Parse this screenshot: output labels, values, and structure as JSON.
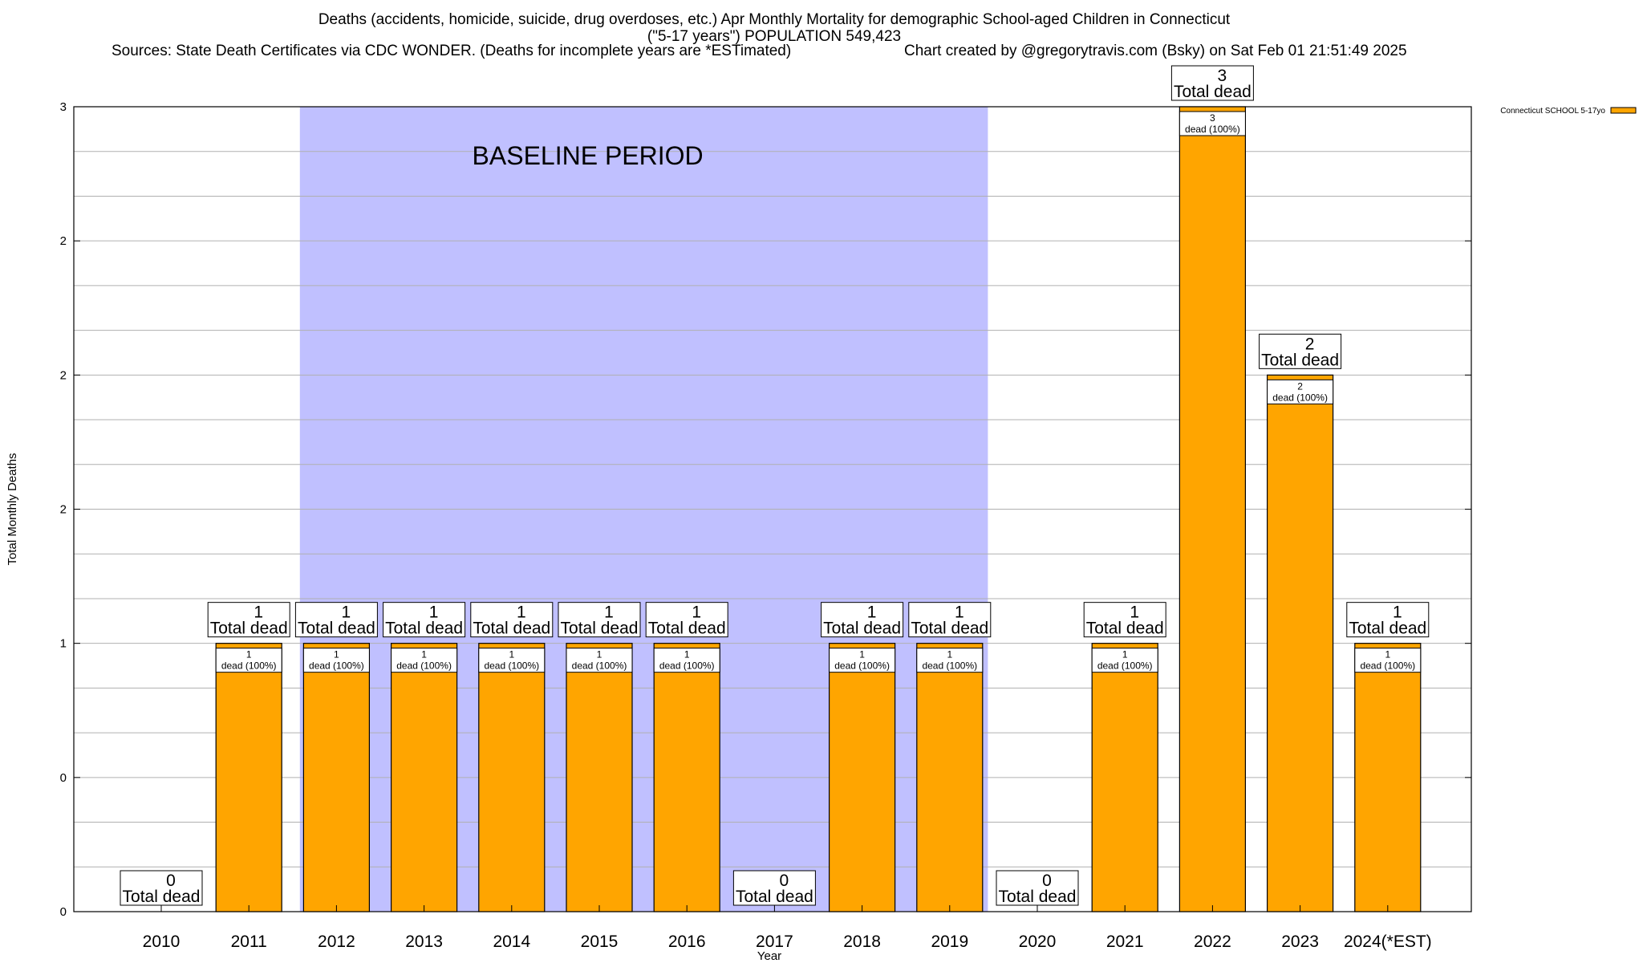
{
  "header": {
    "title_line1": "Deaths (accidents, homicide, suicide, drug overdoses, etc.) Apr Monthly Mortality for demographic School-aged Children in Connecticut",
    "title_line2": "(\"5-17 years\") POPULATION 549,423",
    "sources": "Sources: State Death Certificates via CDC WONDER. (Deaths for incomplete years are *ESTimated)",
    "credit": "Chart created by @gregorytravis.com (Bsky) on Sat Feb 01 21:51:49 2025"
  },
  "chart_data": {
    "type": "bar",
    "title": "Deaths (accidents, homicide, suicide, drug overdoses, etc.) Apr Monthly Mortality for demographic School-aged Children in Connecticut",
    "xlabel": "Year",
    "ylabel": "Total Monthly Deaths",
    "ylim": [
      0,
      3
    ],
    "y_ticks": [
      {
        "value": 0,
        "label": "0"
      },
      {
        "value": 0.5,
        "label": "0"
      },
      {
        "value": 1,
        "label": "1"
      },
      {
        "value": 1.5,
        "label": "2"
      },
      {
        "value": 2,
        "label": "2"
      },
      {
        "value": 2.5,
        "label": "2"
      },
      {
        "value": 3,
        "label": "3"
      }
    ],
    "grid": true,
    "legend": {
      "position": "top-right",
      "entries": [
        "Connecticut SCHOOL 5-17yo"
      ]
    },
    "categories": [
      "2010",
      "2011",
      "2012",
      "2013",
      "2014",
      "2015",
      "2016",
      "2017",
      "2018",
      "2019",
      "2020",
      "2021",
      "2022",
      "2023",
      "2024(*EST)"
    ],
    "series": [
      {
        "name": "Connecticut SCHOOL 5-17yo",
        "values": [
          0,
          1,
          1,
          1,
          1,
          1,
          1,
          0,
          1,
          1,
          0,
          1,
          3,
          2,
          1
        ]
      }
    ],
    "total_labels": [
      "0\nTotal dead",
      "1\nTotal dead",
      "1\nTotal dead",
      "1\nTotal dead",
      "1\nTotal dead",
      "1\nTotal dead",
      "1\nTotal dead",
      "0\nTotal dead",
      "1\nTotal dead",
      "1\nTotal dead",
      "0\nTotal dead",
      "1\nTotal dead",
      "3\nTotal dead",
      "2\nTotal dead",
      "1\nTotal dead"
    ],
    "inner_labels": [
      "",
      "1\ndead (100%)",
      "1\ndead (100%)",
      "1\ndead (100%)",
      "1\ndead (100%)",
      "1\ndead (100%)",
      "1\ndead (100%)",
      "",
      "1\ndead (100%)",
      "1\ndead (100%)",
      "",
      "1\ndead (100%)",
      "3\ndead (100%)",
      "2\ndead (100%)",
      "1\ndead (100%)"
    ],
    "annotation": {
      "text": "BASELINE PERIOD",
      "range": [
        "2012",
        "2019"
      ]
    },
    "colors": {
      "bar": "#ffa500",
      "baseline": "#c0c0ff",
      "grid": "#b0b0b0"
    }
  }
}
